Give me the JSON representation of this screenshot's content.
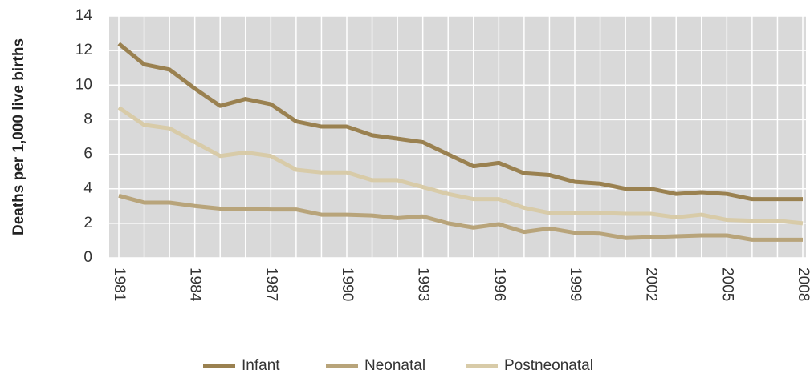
{
  "chart_data": {
    "type": "line",
    "y_label": "Deaths per 1,000 live births",
    "x": [
      1981,
      1982,
      1983,
      1984,
      1985,
      1986,
      1987,
      1988,
      1989,
      1990,
      1991,
      1992,
      1993,
      1994,
      1995,
      1996,
      1997,
      1998,
      1999,
      2000,
      2001,
      2002,
      2003,
      2004,
      2005,
      2006,
      2007,
      2008
    ],
    "series": [
      {
        "name": "Infant",
        "color": "#9a8150",
        "values": [
          12.4,
          11.2,
          10.9,
          9.8,
          8.8,
          9.2,
          8.9,
          7.9,
          7.6,
          7.6,
          7.1,
          6.9,
          6.7,
          6.0,
          5.3,
          5.5,
          4.9,
          4.8,
          4.4,
          4.3,
          4.0,
          4.0,
          3.7,
          3.8,
          3.7,
          3.4,
          3.4,
          3.4
        ]
      },
      {
        "name": "Neonatal",
        "color": "#b8a47a",
        "values": [
          3.6,
          3.2,
          3.2,
          3.0,
          2.85,
          2.85,
          2.8,
          2.8,
          2.5,
          2.5,
          2.45,
          2.3,
          2.4,
          2.0,
          1.75,
          1.95,
          1.5,
          1.7,
          1.45,
          1.4,
          1.15,
          1.2,
          1.25,
          1.3,
          1.3,
          1.05,
          1.05,
          1.05
        ]
      },
      {
        "name": "Postneonatal",
        "color": "#d8cba8",
        "values": [
          8.7,
          7.7,
          7.5,
          6.7,
          5.9,
          6.1,
          5.9,
          5.1,
          4.95,
          4.95,
          4.5,
          4.5,
          4.1,
          3.7,
          3.4,
          3.4,
          2.9,
          2.6,
          2.6,
          2.6,
          2.55,
          2.55,
          2.35,
          2.5,
          2.2,
          2.15,
          2.15,
          2.0
        ]
      }
    ],
    "xlim": [
      1981,
      2008
    ],
    "xticks": [
      1981,
      1984,
      1987,
      1990,
      1993,
      1996,
      1999,
      2002,
      2005,
      2008
    ],
    "ylim": [
      0,
      14
    ],
    "yticks": [
      0,
      2,
      4,
      6,
      8,
      10,
      12,
      14
    ],
    "grid": true,
    "legend": "bottom"
  }
}
